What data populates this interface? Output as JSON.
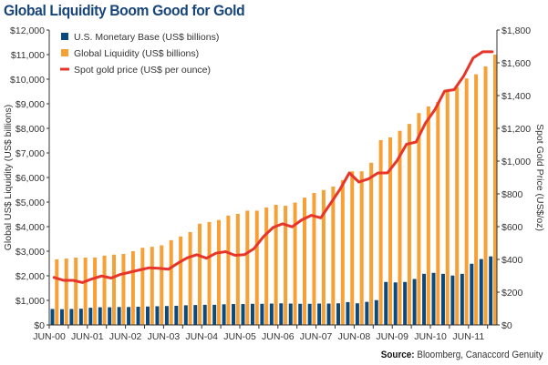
{
  "title": "Global Liquidity Boom Good for Gold",
  "source_label": "Source:",
  "source_text": "Bloomberg, Canaccord Genuity",
  "chart_data": {
    "type": "bar+line",
    "title": "Global Liquidity Boom Good for Gold",
    "ylabel_left": "Global US$ Liquidity (US$ billions)",
    "ylabel_right": "Spot Gold Price (US$/oz)",
    "ylim_left": [
      0,
      12000
    ],
    "ylim_right": [
      0,
      1800
    ],
    "left_ticks": [
      "$0",
      "$1,000",
      "$2,000",
      "$3,000",
      "$4,000",
      "$5,000",
      "$6,000",
      "$7,000",
      "$8,000",
      "$9,000",
      "$10,000",
      "$11,000",
      "$12,000"
    ],
    "right_ticks": [
      "$0",
      "$200",
      "$400",
      "$600",
      "$800",
      "$1,000",
      "$1,200",
      "$1,400",
      "$1,600",
      "$1,800"
    ],
    "x_tick_labels": [
      "JUN-00",
      "JUN-01",
      "JUN-02",
      "JUN-03",
      "JUN-04",
      "JUN-05",
      "JUN-06",
      "JUN-07",
      "JUN-08",
      "JUN-09",
      "JUN-10",
      "JUN-11"
    ],
    "x_frequency": "quarterly, Jun-00 to Dec-11",
    "legend_position": "top-left",
    "grid": false,
    "colors": {
      "monetary_base": "#0b4a7e",
      "global_liquidity": "#f7a035",
      "gold": "#e8352a"
    },
    "series": [
      {
        "name": "U.S. Monetary Base (US$ billions)",
        "type": "bar",
        "axis": "left",
        "values": [
          650,
          640,
          650,
          660,
          700,
          720,
          720,
          730,
          730,
          740,
          750,
          760,
          770,
          780,
          800,
          810,
          820,
          820,
          840,
          850,
          850,
          860,
          860,
          870,
          880,
          870,
          860,
          860,
          870,
          870,
          880,
          930,
          880,
          940,
          1010,
          1750,
          1730,
          1750,
          1870,
          2080,
          2120,
          2080,
          2010,
          2080,
          2490,
          2680,
          2790
        ]
      },
      {
        "name": "Global Liquidity (US$ billions)",
        "type": "bar",
        "axis": "left",
        "values": [
          2670,
          2700,
          2740,
          2740,
          2740,
          2820,
          2860,
          2890,
          3000,
          3140,
          3180,
          3240,
          3450,
          3600,
          3780,
          4120,
          4190,
          4270,
          4450,
          4520,
          4650,
          4650,
          4780,
          4890,
          4850,
          4980,
          5180,
          5370,
          5490,
          5630,
          5890,
          6250,
          6250,
          6600,
          7520,
          7630,
          7900,
          8180,
          8620,
          8890,
          9080,
          9480,
          9680,
          10030,
          10200,
          10520,
          11000
        ]
      },
      {
        "name": "Spot gold price (US$ per ounce)",
        "type": "line",
        "axis": "right",
        "values": [
          290,
          272,
          272,
          259,
          281,
          299,
          286,
          309,
          322,
          336,
          349,
          346,
          340,
          377,
          410,
          429,
          407,
          438,
          447,
          425,
          429,
          466,
          540,
          595,
          617,
          599,
          641,
          669,
          654,
          739,
          826,
          928,
          872,
          891,
          928,
          928,
          1002,
          1103,
          1116,
          1233,
          1316,
          1427,
          1436,
          1519,
          1630,
          1667,
          1667
        ]
      }
    ]
  }
}
